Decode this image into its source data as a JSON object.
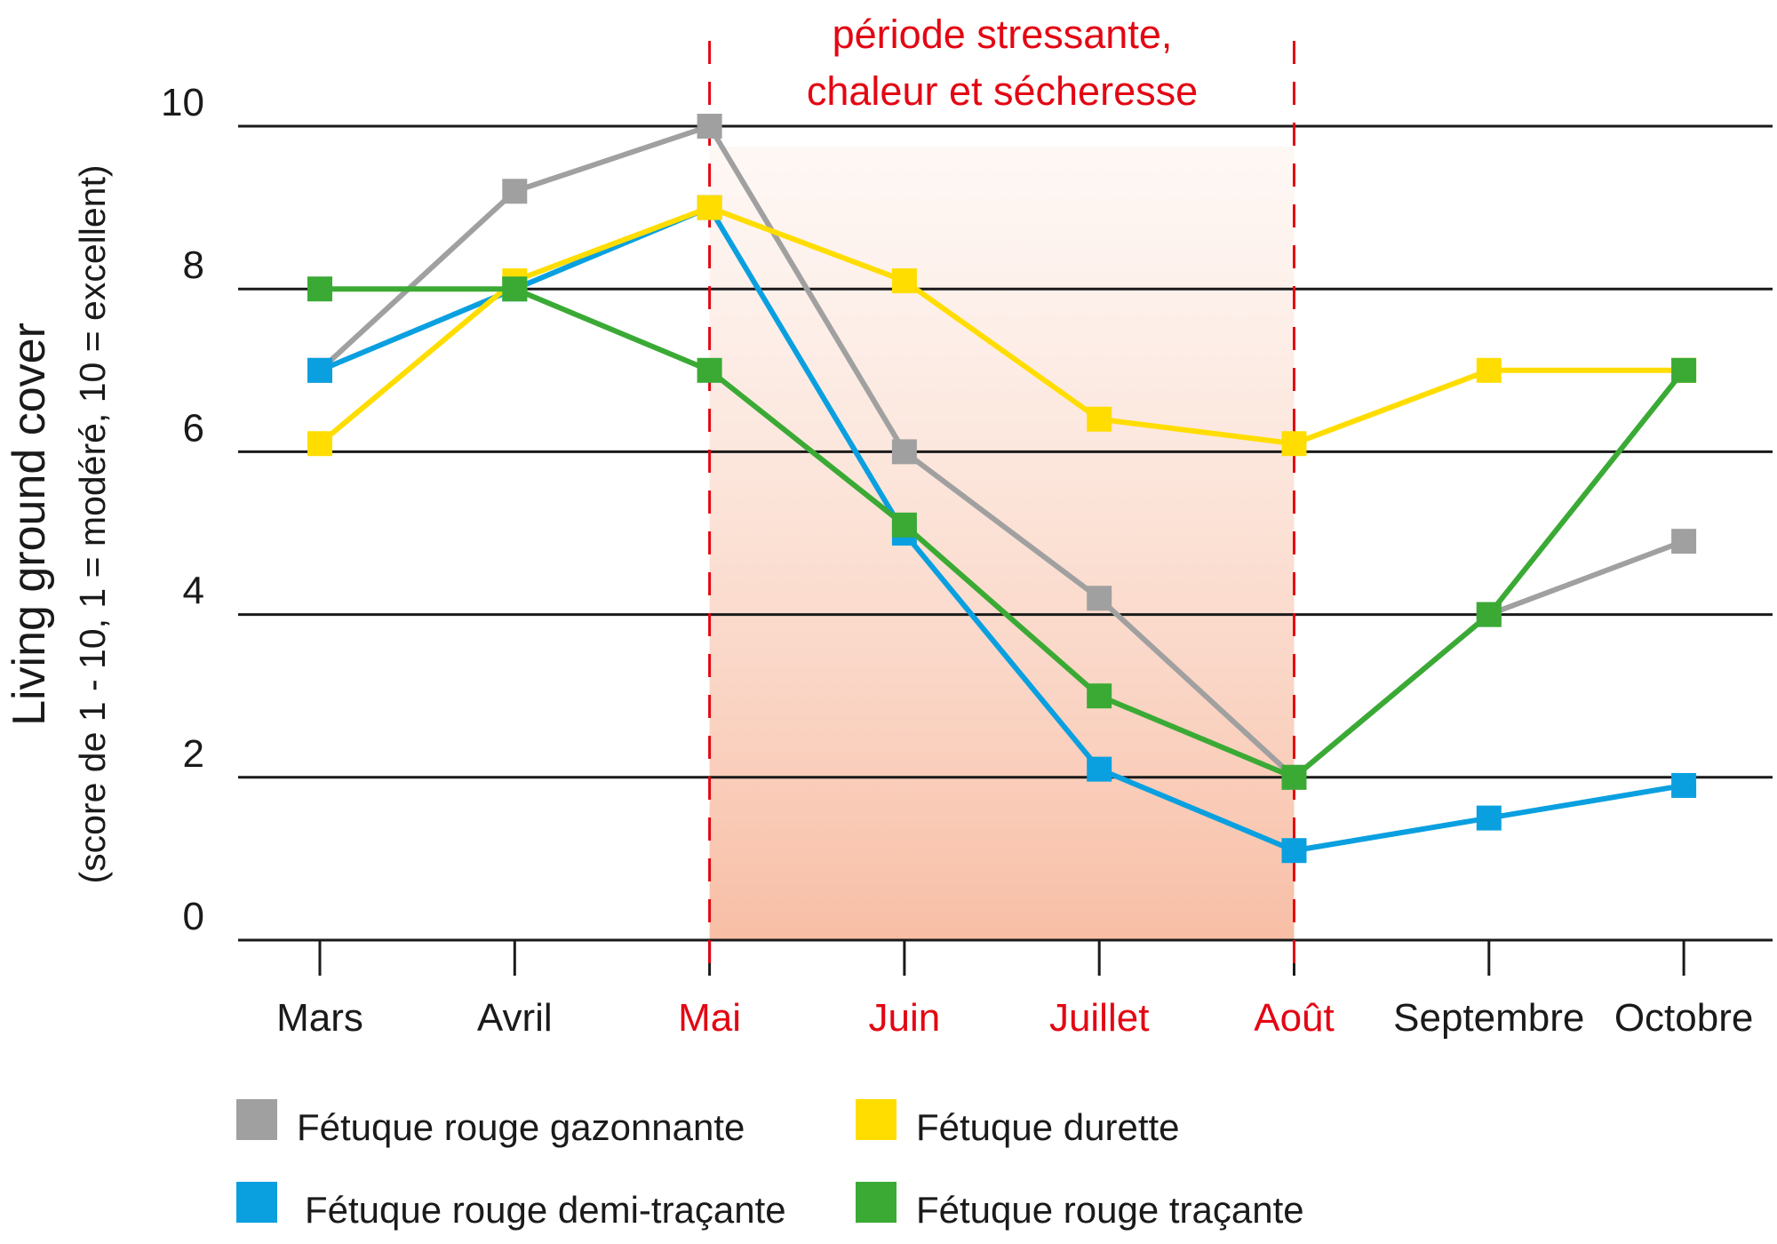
{
  "chart_data": {
    "type": "line",
    "title": "",
    "stress_period_label": [
      "période stressante,",
      "chaleur et sécheresse"
    ],
    "ylabel": "Living ground cover",
    "ylabel_sub": "(score de 1 - 10, 1 = modéré, 10 = excellent)",
    "xlabel": "",
    "categories": [
      "Mars",
      "Avril",
      "Mai",
      "Juin",
      "Juillet",
      "Août",
      "Septembre",
      "Octobre"
    ],
    "highlighted_categories": [
      "Mai",
      "Juin",
      "Juillet",
      "Août"
    ],
    "stress_period": {
      "start": "Mai",
      "end": "Août"
    },
    "ylim": [
      0,
      10
    ],
    "yticks": [
      "0",
      "2",
      "4",
      "6",
      "8",
      "10"
    ],
    "grid": true,
    "legend_position": "bottom",
    "series": [
      {
        "name": "Fétuque rouge gazonnante",
        "color": "#a0a0a0",
        "values": [
          7.0,
          9.2,
          10.0,
          6.0,
          4.2,
          2.0,
          4.0,
          4.9
        ]
      },
      {
        "name": "Fétuque rouge demi-traçante",
        "color": "#0aa0e0",
        "values": [
          7.0,
          8.0,
          9.0,
          5.0,
          2.1,
          1.1,
          1.5,
          1.9
        ]
      },
      {
        "name": "Fétuque durette",
        "color": "#ffdd00",
        "values": [
          6.1,
          8.1,
          9.0,
          8.1,
          6.4,
          6.1,
          7.0,
          7.0
        ]
      },
      {
        "name": "Fétuque rouge traçante",
        "color": "#3aaa35",
        "values": [
          8.0,
          8.0,
          7.0,
          5.1,
          3.0,
          2.0,
          4.0,
          7.0
        ]
      }
    ],
    "legend_order": [
      "Fétuque rouge gazonnante",
      "Fétuque durette",
      "Fétuque rouge demi-traçante",
      "Fétuque rouge traçante"
    ],
    "colors": {
      "highlight": "#e30613",
      "axis": "#1a1a1a",
      "text": "#1a1a1a",
      "shade_top": "#fdf3ee",
      "shade_bottom": "#f8bea5"
    }
  }
}
